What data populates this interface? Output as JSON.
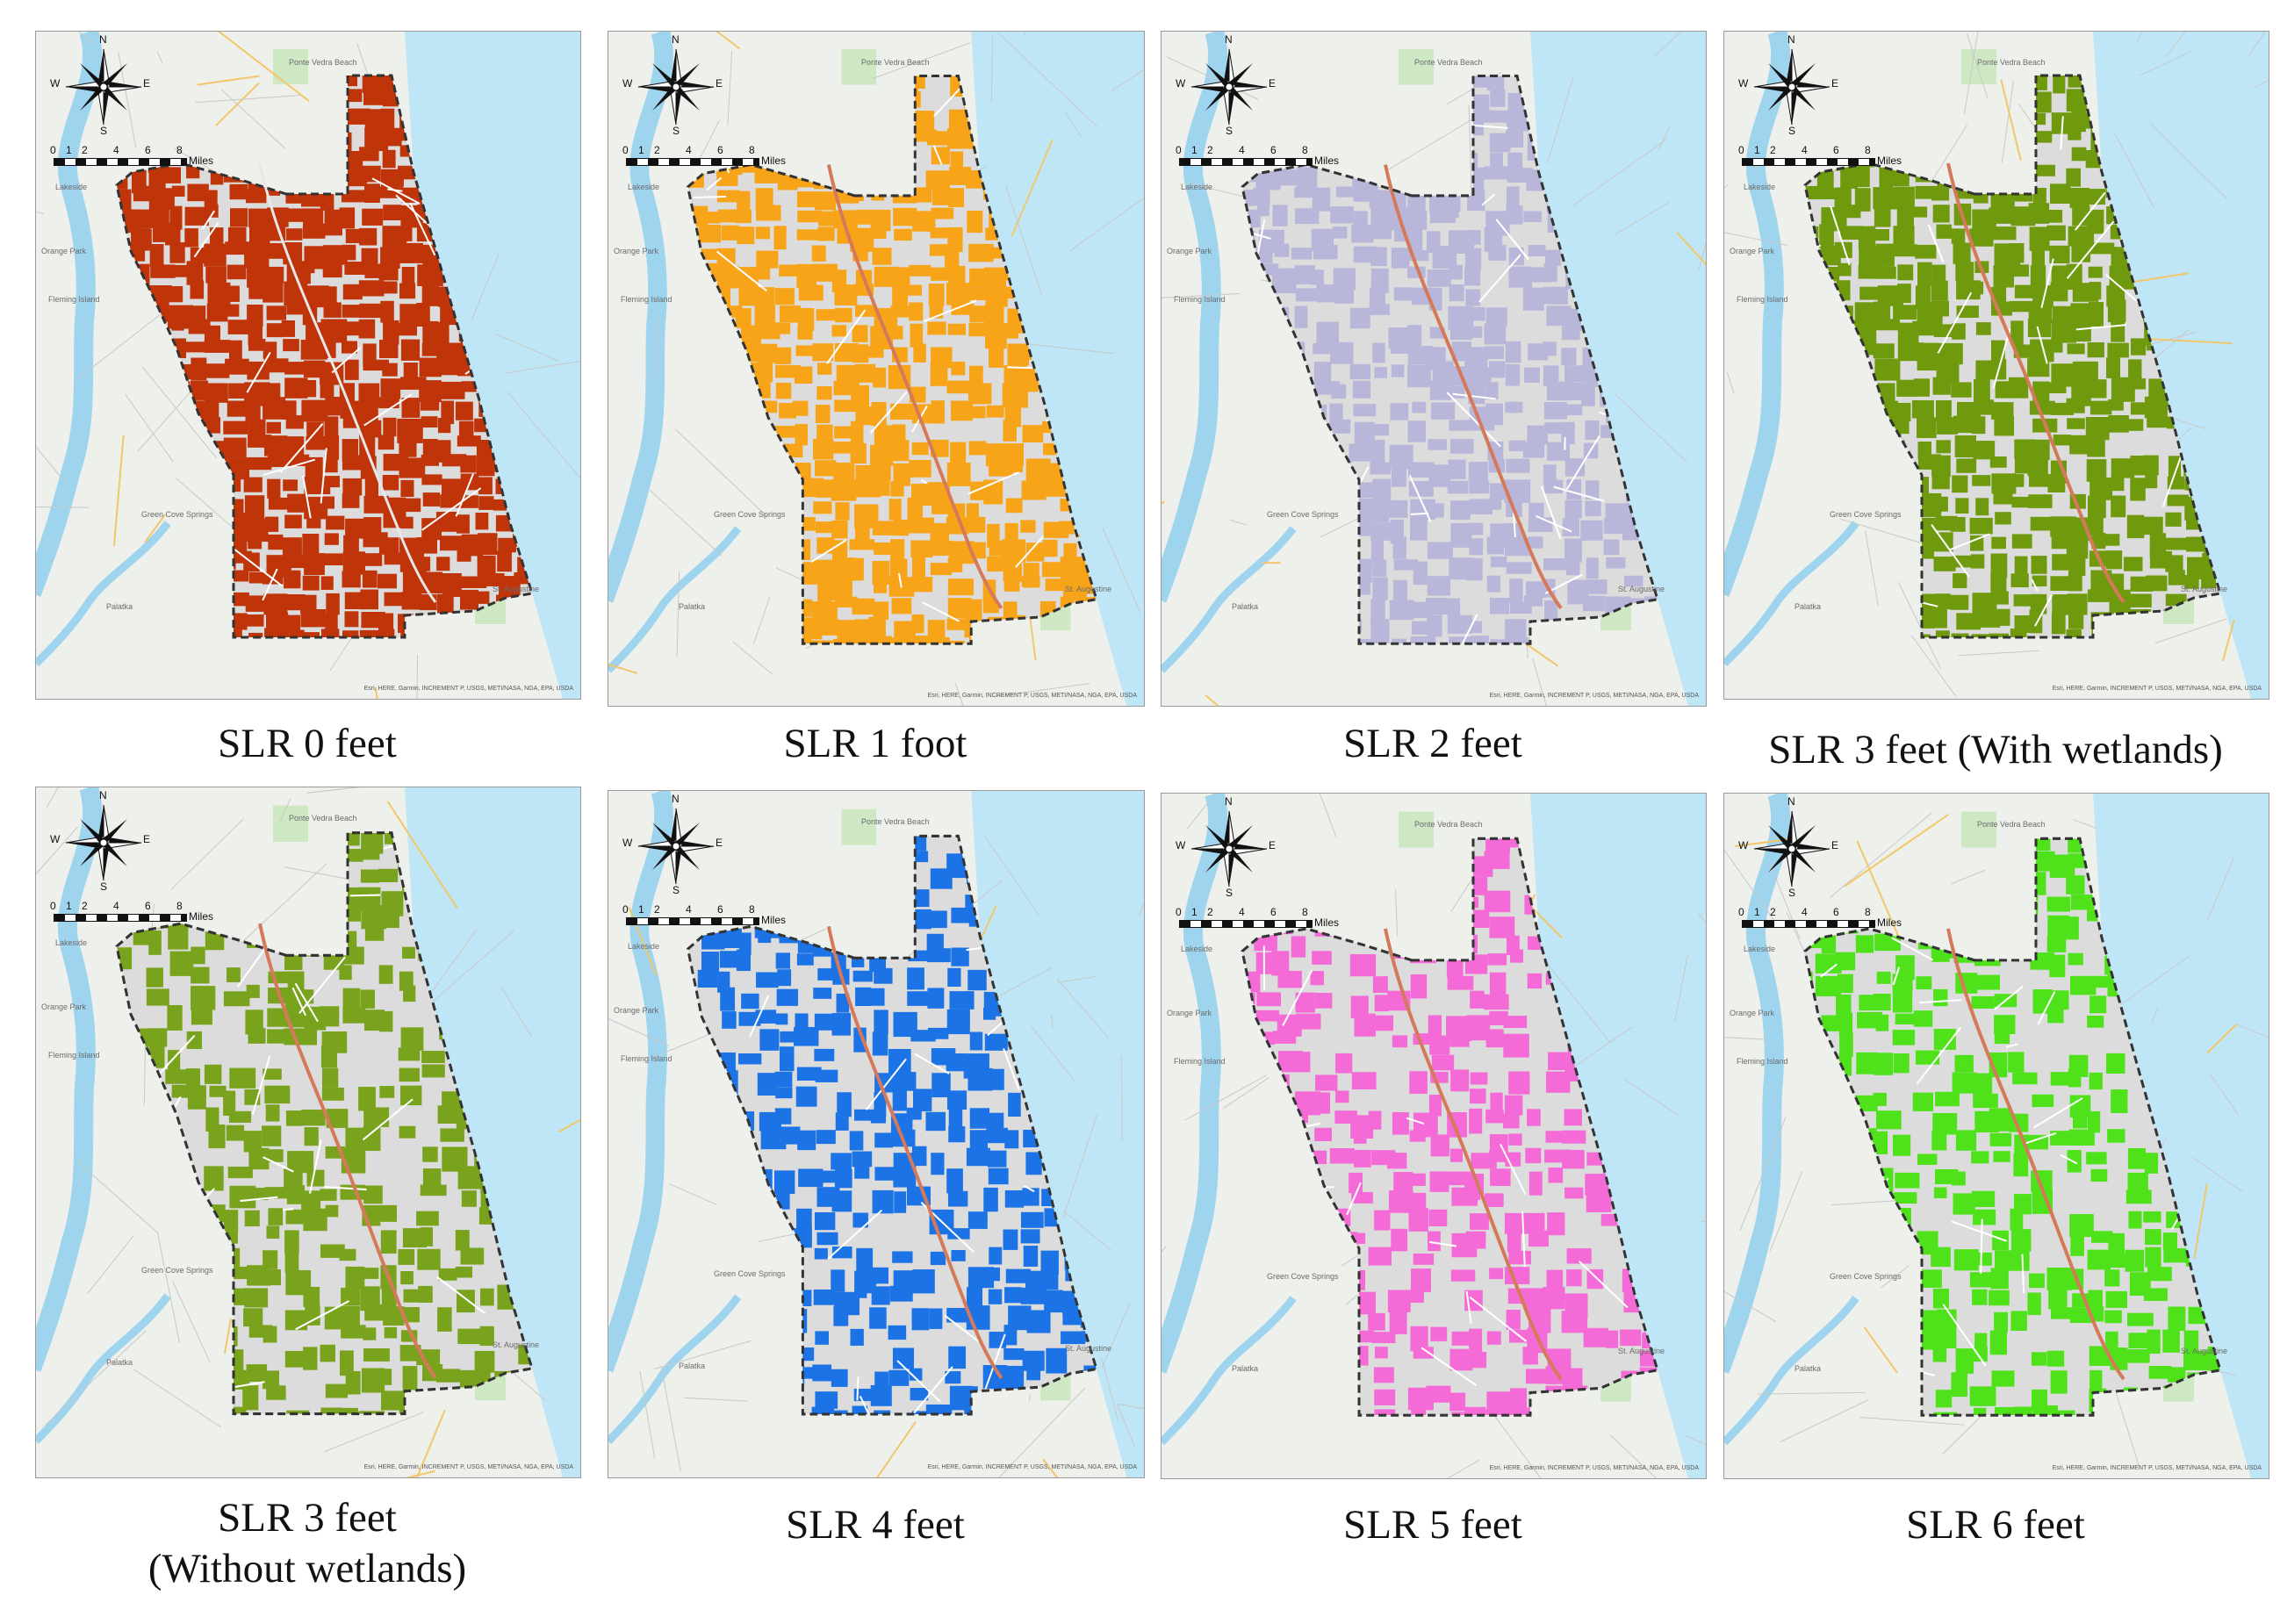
{
  "compass": {
    "n": "N",
    "s": "S",
    "e": "E",
    "w": "W"
  },
  "scale_bar": {
    "ticks": [
      "0",
      "1",
      "2",
      "4",
      "6",
      "8"
    ],
    "unit": "Miles"
  },
  "basemap_labels": {
    "lakeside": "Lakeside",
    "fleming": "Fleming Island",
    "orange_park": "Orange Park",
    "palatka": "Palatka",
    "ponte_vedra": "Ponte Vedra Beach",
    "st_augustine": "St. Augustine",
    "green_cove": "Green Cove Springs"
  },
  "attribution": "Esri, HERE, Garmin, INCREMENT P, USGS, METI/NASA, NGA, EPA, USDA",
  "panels": [
    {
      "caption": "SLR 0 feet",
      "fill_color": "#c0340a"
    },
    {
      "caption": "SLR 1 foot",
      "fill_color": "#f7a419"
    },
    {
      "caption": "SLR 2 feet",
      "fill_color": "#b9b7d9"
    },
    {
      "caption": "SLR 3 feet (With wetlands)",
      "fill_color": "#6f9a0e"
    },
    {
      "caption": "SLR 3 feet",
      "caption_line2": "(Without wetlands)",
      "fill_color": "#79a31c"
    },
    {
      "caption": "SLR 4 feet",
      "fill_color": "#1c73e6"
    },
    {
      "caption": "SLR 5 feet",
      "fill_color": "#f46ad6"
    },
    {
      "caption": "SLR 6 feet",
      "fill_color": "#4fe21a"
    }
  ]
}
